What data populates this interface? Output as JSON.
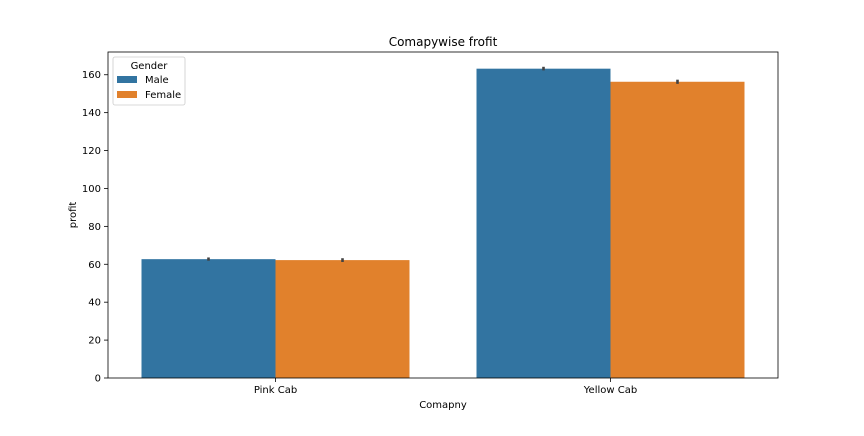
{
  "chart_data": {
    "type": "bar",
    "title": "Comapywise frofit",
    "xlabel": "Comapny",
    "ylabel": "profit",
    "categories": [
      "Pink Cab",
      "Yellow Cab"
    ],
    "series": [
      {
        "name": "Male",
        "values": [
          62.7,
          163.2
        ],
        "error": [
          [
            61.9,
            63.6
          ],
          [
            162.3,
            164.2
          ]
        ],
        "color": "#3274a1"
      },
      {
        "name": "Female",
        "values": [
          62.2,
          156.3
        ],
        "error": [
          [
            61.2,
            63.2
          ],
          [
            155.2,
            157.4
          ]
        ],
        "color": "#e1812c"
      }
    ],
    "ylim": [
      0,
      172
    ],
    "yticks": [
      0,
      20,
      40,
      60,
      80,
      100,
      120,
      140,
      160
    ],
    "grid": false,
    "legend": {
      "title": "Gender",
      "placement": "top-left"
    }
  }
}
